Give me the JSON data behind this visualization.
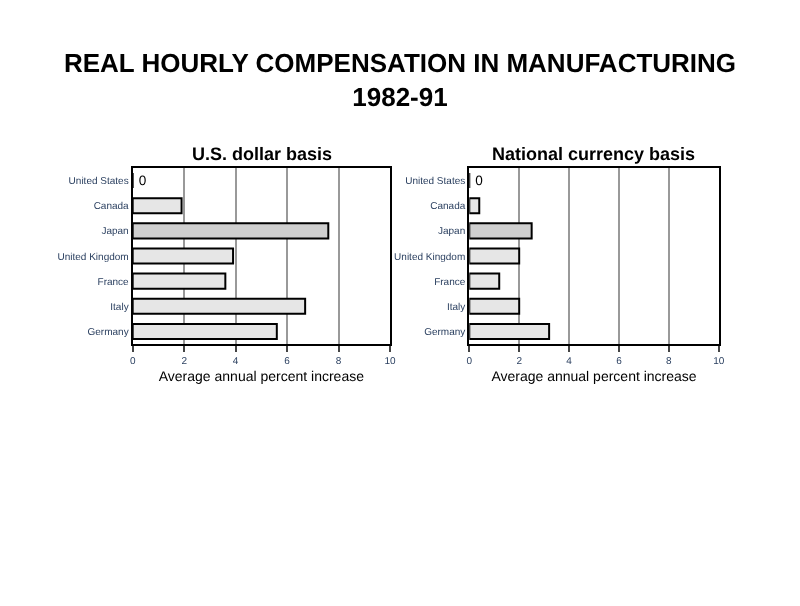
{
  "chart_data": [
    {
      "type": "bar",
      "orientation": "horizontal",
      "title": "REAL HOURLY COMPENSATION IN MANUFACTURING\n1982-91",
      "subtitle": "U.S. dollar basis",
      "xlabel": "Average annual percent increase",
      "categories": [
        "United States",
        "Canada",
        "Japan",
        "United Kingdom",
        "France",
        "Italy",
        "Germany"
      ],
      "values": [
        0,
        1.9,
        7.6,
        3.9,
        3.6,
        6.7,
        5.6
      ],
      "value_labels": [
        "0",
        null,
        null,
        null,
        null,
        null,
        null
      ],
      "colors": [
        "#e6e6e6",
        "#e6e6e6",
        "#cfcfcf",
        "#e6e6e6",
        "#e6e6e6",
        "#e6e6e6",
        "#e6e6e6"
      ],
      "xlim": [
        0,
        10
      ],
      "xticks": [
        0,
        2,
        4,
        6,
        8,
        10
      ],
      "grid": "x"
    },
    {
      "type": "bar",
      "orientation": "horizontal",
      "subtitle": "National currency basis",
      "xlabel": "Average annual percent increase",
      "categories": [
        "United States",
        "Canada",
        "Japan",
        "United Kingdom",
        "France",
        "Italy",
        "Germany"
      ],
      "values": [
        0,
        0.4,
        2.5,
        2.0,
        1.2,
        2.0,
        3.2
      ],
      "value_labels": [
        "0",
        null,
        null,
        null,
        null,
        null,
        null
      ],
      "colors": [
        "#e6e6e6",
        "#e6e6e6",
        "#cfcfcf",
        "#e6e6e6",
        "#e6e6e6",
        "#e6e6e6",
        "#e6e6e6"
      ],
      "xlim": [
        0,
        10
      ],
      "xticks": [
        0,
        2,
        4,
        6,
        8,
        10
      ],
      "grid": "x"
    }
  ]
}
